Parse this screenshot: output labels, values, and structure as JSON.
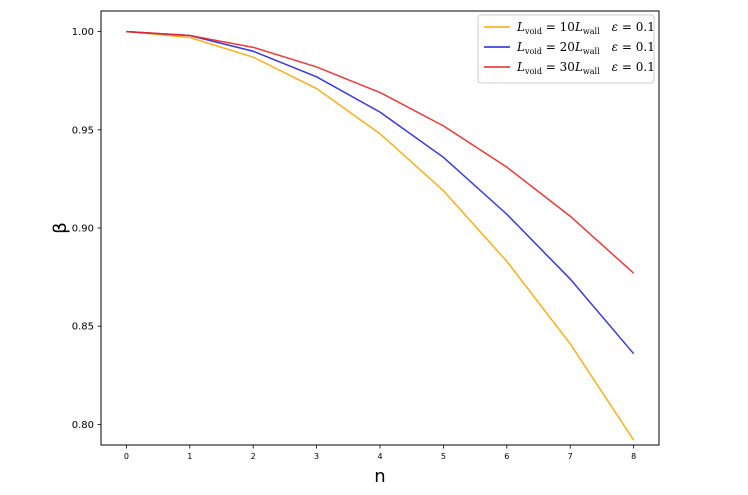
{
  "chart_data": {
    "type": "line",
    "xlabel": "n",
    "ylabel": "β",
    "xlim": [
      -0.4,
      8.4
    ],
    "ylim": [
      0.7895,
      1.0105
    ],
    "x": [
      0,
      1,
      2,
      3,
      4,
      5,
      6,
      7,
      8
    ],
    "x_ticks": [
      "0",
      "1",
      "2",
      "3",
      "4",
      "5",
      "6",
      "7",
      "8"
    ],
    "y_ticks": [
      0.8,
      0.85,
      0.9,
      0.95,
      1.0
    ],
    "y_tick_labels": [
      "0.80",
      "0.85",
      "0.90",
      "0.95",
      "1.00"
    ],
    "grid": false,
    "legend_position": "top-right",
    "series": [
      {
        "name": "L_void = 10L_wall  ε = 0.1",
        "legend": {
          "coef": "10",
          "eps": "0.1"
        },
        "color": "#FFA500",
        "values": [
          1.0,
          0.997,
          0.987,
          0.971,
          0.948,
          0.919,
          0.883,
          0.841,
          0.792
        ]
      },
      {
        "name": "L_void = 20L_wall  ε = 0.1",
        "legend": {
          "coef": "20",
          "eps": "0.1"
        },
        "color": "#2222E0",
        "values": [
          1.0,
          0.998,
          0.99,
          0.977,
          0.959,
          0.936,
          0.907,
          0.874,
          0.836
        ]
      },
      {
        "name": "L_void = 30L_wall  ε = 0.1",
        "legend": {
          "coef": "30",
          "eps": "0.1"
        },
        "color": "#EE2222",
        "values": [
          1.0,
          0.998,
          0.992,
          0.982,
          0.969,
          0.952,
          0.931,
          0.906,
          0.877
        ]
      }
    ]
  }
}
